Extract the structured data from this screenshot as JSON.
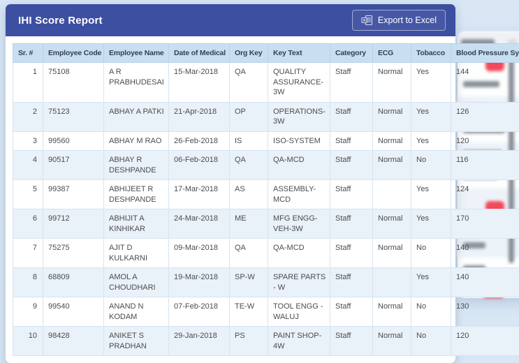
{
  "colors": {
    "page_background": "#d9e7f5",
    "modal_header": "#3d4fa1",
    "table_header_background": "#c8dff2",
    "row_stripe": "#e9f1f9",
    "background_accent_button": "#f2495b"
  },
  "modal": {
    "title": "IHI Score Report",
    "export_button": {
      "label": "Export to Excel",
      "icon": "excel-icon"
    }
  },
  "table": {
    "columns": [
      "Sr. #",
      "Employee Code",
      "Employee Name",
      "Date of Medical",
      "Org Key",
      "Key Text",
      "Category",
      "ECG",
      "Tobacco",
      "Blood Pressure Systolic"
    ],
    "rows": [
      [
        "1",
        "75108",
        "A R PRABHUDESAI",
        "15-Mar-2018",
        "QA",
        "QUALITY ASSURANCE-3W",
        "Staff",
        "Normal",
        "Yes",
        "144"
      ],
      [
        "2",
        "75123",
        "ABHAY A PATKI",
        "21-Apr-2018",
        "OP",
        "OPERATIONS-3W",
        "Staff",
        "Normal",
        "Yes",
        "126"
      ],
      [
        "3",
        "99560",
        "ABHAY M RAO",
        "26-Feb-2018",
        "IS",
        "ISO-SYSTEM",
        "Staff",
        "Normal",
        "Yes",
        "120"
      ],
      [
        "4",
        "90517",
        "ABHAY R DESHPANDE",
        "06-Feb-2018",
        "QA",
        "QA-MCD",
        "Staff",
        "Normal",
        "No",
        "116"
      ],
      [
        "5",
        "99387",
        "ABHIJEET R DESHPANDE",
        "17-Mar-2018",
        "AS",
        "ASSEMBLY-MCD",
        "Staff",
        "",
        "Yes",
        "124"
      ],
      [
        "6",
        "99712",
        "ABHIJIT A KINHIKAR",
        "24-Mar-2018",
        "ME",
        "MFG ENGG-VEH-3W",
        "Staff",
        "Normal",
        "Yes",
        "170"
      ],
      [
        "7",
        "75275",
        "AJIT D KULKARNI",
        "09-Mar-2018",
        "QA",
        "QA-MCD",
        "Staff",
        "Normal",
        "No",
        "140"
      ],
      [
        "8",
        "68809",
        "AMOL A CHOUDHARI",
        "19-Mar-2018",
        "SP-W",
        "SPARE PARTS - W",
        "Staff",
        "",
        "Yes",
        "140"
      ],
      [
        "9",
        "99540",
        "ANAND N KODAM",
        "07-Feb-2018",
        "TE-W",
        "TOOL ENGG - WALUJ",
        "Staff",
        "Normal",
        "No",
        "130"
      ],
      [
        "10",
        "98428",
        "ANIKET S PRADHAN",
        "29-Jan-2018",
        "PS",
        "PAINT SHOP-4W",
        "Staff",
        "Normal",
        "No",
        "120"
      ]
    ]
  }
}
